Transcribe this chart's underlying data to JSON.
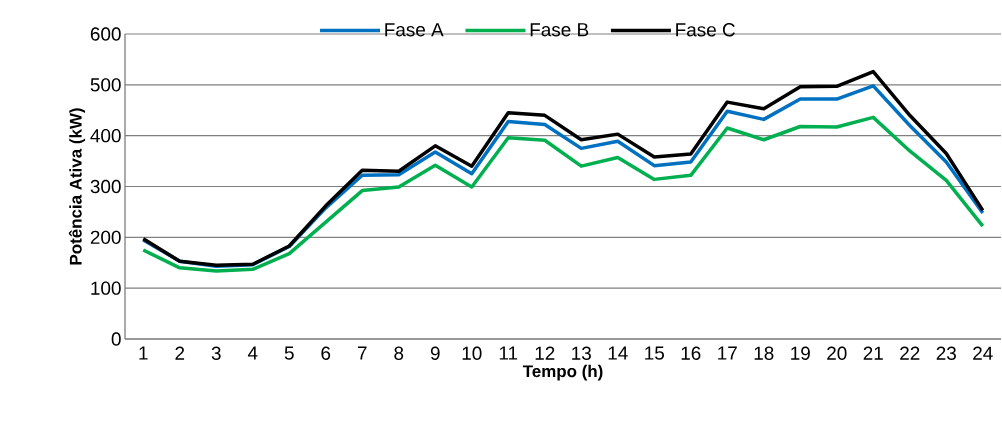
{
  "chart_data": {
    "type": "line",
    "xlabel": "Tempo (h)",
    "ylabel": "Potência Ativa (kW)",
    "categories": [
      "1",
      "2",
      "3",
      "4",
      "5",
      "6",
      "7",
      "8",
      "9",
      "10",
      "11",
      "12",
      "13",
      "14",
      "15",
      "16",
      "17",
      "18",
      "19",
      "20",
      "21",
      "22",
      "23",
      "24"
    ],
    "series": [
      {
        "name": "Fase A",
        "color": "#0070c0",
        "values": [
          195,
          153,
          143,
          146,
          182,
          258,
          322,
          323,
          368,
          325,
          428,
          422,
          375,
          389,
          341,
          348,
          448,
          432,
          472,
          472,
          498,
          420,
          348,
          248
        ]
      },
      {
        "name": "Fase B",
        "color": "#00b050",
        "values": [
          175,
          140,
          134,
          137,
          168,
          230,
          292,
          299,
          342,
          299,
          396,
          391,
          340,
          357,
          314,
          322,
          415,
          392,
          418,
          417,
          436,
          370,
          312,
          222
        ]
      },
      {
        "name": "Fase C",
        "color": "#000000",
        "values": [
          197,
          153,
          145,
          147,
          183,
          262,
          332,
          330,
          380,
          340,
          445,
          440,
          392,
          403,
          358,
          364,
          466,
          453,
          496,
          497,
          526,
          440,
          365,
          253
        ]
      }
    ],
    "ylim": [
      0,
      600
    ],
    "yticks": [
      0,
      100,
      200,
      300,
      400,
      500,
      600
    ],
    "grid": "y",
    "legend": "top",
    "marker": "none",
    "line_style": "solid"
  }
}
